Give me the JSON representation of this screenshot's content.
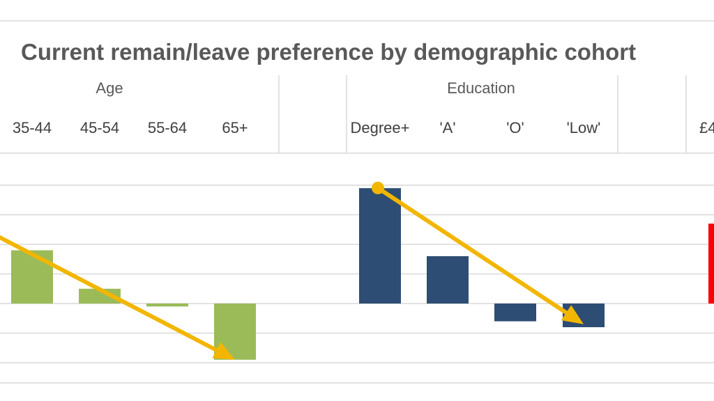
{
  "chart_data": {
    "type": "bar",
    "title": "Current remain/leave preference by demographic cohort",
    "xlabel": "",
    "ylabel": "",
    "ylim": [
      -2,
      4
    ],
    "grid": true,
    "groups": [
      {
        "name": "Age",
        "color": "#9BBB59",
        "categories": [
          "35-44",
          "45-54",
          "55-64",
          "65+"
        ],
        "values": [
          1.8,
          0.5,
          -0.1,
          -1.9
        ],
        "trend_arrow": {
          "from_value": 3.3,
          "to_value": -1.9
        }
      },
      {
        "name": "Education",
        "color": "#2E4D74",
        "categories": [
          "Degree+",
          "'A'",
          "'O'",
          "'Low'"
        ],
        "values": [
          3.9,
          1.6,
          -0.6,
          -0.8
        ],
        "trend_arrow": {
          "from_value": 4.0,
          "to_value": -0.7
        }
      },
      {
        "name": "",
        "color": "#FF0000",
        "categories": [
          "£4"
        ],
        "values": [
          2.7
        ]
      }
    ],
    "arrow_color": "#F2B600"
  }
}
